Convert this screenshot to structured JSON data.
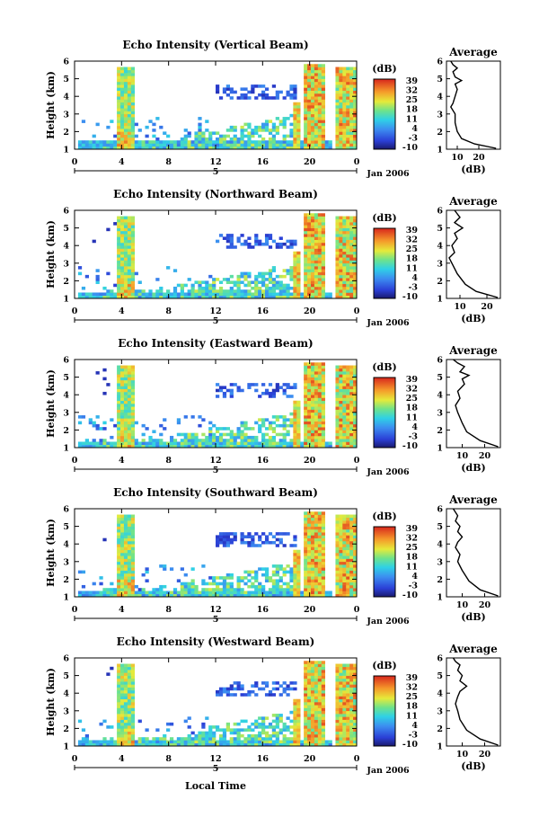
{
  "figure": {
    "bottom_label": "Local Time",
    "date_label": "Jan 2006",
    "day_label": "5"
  },
  "chart_data": [
    {
      "type": "heatmap",
      "title": "Echo Intensity (Vertical Beam)",
      "ylabel": "Height (km)",
      "xlabel": "Local Time",
      "x_ticks": [
        "0",
        "4",
        "8",
        "12",
        "16",
        "20",
        "0"
      ],
      "y_ticks": [
        "1",
        "2",
        "3",
        "4",
        "5",
        "6"
      ],
      "ylim": [
        1,
        6
      ],
      "colorbar": {
        "label": "(dB)",
        "ticks": [
          "39",
          "32",
          "25",
          "18",
          "11",
          "4",
          "-3",
          "-10"
        ],
        "range": [
          -10,
          39
        ]
      },
      "profile": {
        "title": "Average",
        "xlabel": "(dB)",
        "x_ticks": [
          "10",
          "20"
        ],
        "xlim": [
          5,
          30
        ],
        "y_ticks": [
          "1",
          "2",
          "3",
          "4",
          "5",
          "6"
        ],
        "points": [
          [
            28,
            1.05
          ],
          [
            18,
            1.3
          ],
          [
            12,
            1.6
          ],
          [
            10,
            2.0
          ],
          [
            9,
            2.5
          ],
          [
            9,
            3.0
          ],
          [
            7,
            3.4
          ],
          [
            8,
            3.6
          ],
          [
            9,
            4.0
          ],
          [
            10,
            4.4
          ],
          [
            9,
            4.7
          ],
          [
            12,
            4.9
          ],
          [
            9,
            5.1
          ],
          [
            8,
            5.4
          ],
          [
            10,
            5.6
          ],
          [
            8,
            5.8
          ],
          [
            7,
            6.0
          ]
        ]
      }
    },
    {
      "type": "heatmap",
      "title": "Echo Intensity (Northward Beam)",
      "ylabel": "Height (km)",
      "xlabel": "Local Time",
      "x_ticks": [
        "0",
        "4",
        "8",
        "12",
        "16",
        "20",
        "0"
      ],
      "y_ticks": [
        "1",
        "2",
        "3",
        "4",
        "5",
        "6"
      ],
      "ylim": [
        1,
        6
      ],
      "colorbar": {
        "label": "(dB)",
        "ticks": [
          "39",
          "32",
          "25",
          "18",
          "11",
          "4",
          "-3",
          "-10"
        ],
        "range": [
          -10,
          39
        ]
      },
      "profile": {
        "title": "Average",
        "xlabel": "(dB)",
        "x_ticks": [
          "10",
          "20"
        ],
        "xlim": [
          5,
          25
        ],
        "y_ticks": [
          "1",
          "2",
          "3",
          "4",
          "5",
          "6"
        ],
        "points": [
          [
            24,
            1.05
          ],
          [
            16,
            1.4
          ],
          [
            12,
            1.8
          ],
          [
            9,
            2.4
          ],
          [
            7,
            3.0
          ],
          [
            6,
            3.3
          ],
          [
            8,
            3.6
          ],
          [
            7,
            4.0
          ],
          [
            9,
            4.4
          ],
          [
            8,
            4.7
          ],
          [
            11,
            5.0
          ],
          [
            8,
            5.3
          ],
          [
            10,
            5.6
          ],
          [
            8,
            6.0
          ]
        ]
      }
    },
    {
      "type": "heatmap",
      "title": "Echo Intensity (Eastward Beam)",
      "ylabel": "Height (km)",
      "xlabel": "Local Time",
      "x_ticks": [
        "0",
        "4",
        "8",
        "12",
        "16",
        "20",
        "0"
      ],
      "y_ticks": [
        "1",
        "2",
        "3",
        "4",
        "5",
        "6"
      ],
      "ylim": [
        1,
        6
      ],
      "colorbar": {
        "label": "(dB)",
        "ticks": [
          "39",
          "32",
          "25",
          "18",
          "11",
          "4",
          "-3",
          "-10"
        ],
        "range": [
          -10,
          39
        ]
      },
      "profile": {
        "title": "Average",
        "xlabel": "(dB)",
        "x_ticks": [
          "10",
          "20"
        ],
        "xlim": [
          3,
          27
        ],
        "y_ticks": [
          "1",
          "2",
          "3",
          "4",
          "5",
          "6"
        ],
        "points": [
          [
            26,
            1.05
          ],
          [
            18,
            1.4
          ],
          [
            12,
            1.9
          ],
          [
            10,
            2.4
          ],
          [
            8,
            3.0
          ],
          [
            7,
            3.4
          ],
          [
            9,
            3.8
          ],
          [
            8,
            4.2
          ],
          [
            11,
            4.6
          ],
          [
            10,
            4.9
          ],
          [
            13,
            5.1
          ],
          [
            9,
            5.3
          ],
          [
            11,
            5.6
          ],
          [
            8,
            5.8
          ],
          [
            6,
            6.0
          ]
        ]
      }
    },
    {
      "type": "heatmap",
      "title": "Echo Intensity (Southward Beam)",
      "ylabel": "Height (km)",
      "xlabel": "Local Time",
      "x_ticks": [
        "0",
        "4",
        "8",
        "12",
        "16",
        "20",
        "0"
      ],
      "y_ticks": [
        "1",
        "2",
        "3",
        "4",
        "5",
        "6"
      ],
      "ylim": [
        1,
        6
      ],
      "colorbar": {
        "label": "(dB)",
        "ticks": [
          "39",
          "32",
          "25",
          "18",
          "11",
          "4",
          "-3",
          "-10"
        ],
        "range": [
          -10,
          39
        ]
      },
      "profile": {
        "title": "Average",
        "xlabel": "(dB)",
        "x_ticks": [
          "10",
          "20"
        ],
        "xlim": [
          3,
          27
        ],
        "y_ticks": [
          "1",
          "2",
          "3",
          "4",
          "5",
          "6"
        ],
        "points": [
          [
            26,
            1.05
          ],
          [
            18,
            1.4
          ],
          [
            13,
            1.9
          ],
          [
            10,
            2.5
          ],
          [
            8,
            3.0
          ],
          [
            9,
            3.4
          ],
          [
            7,
            3.8
          ],
          [
            8,
            4.1
          ],
          [
            10,
            4.4
          ],
          [
            8,
            4.7
          ],
          [
            9,
            5.0
          ],
          [
            7,
            5.3
          ],
          [
            8,
            5.6
          ],
          [
            6,
            6.0
          ]
        ]
      }
    },
    {
      "type": "heatmap",
      "title": "Echo Intensity (Westward Beam)",
      "ylabel": "Height (km)",
      "xlabel": "Local Time",
      "x_ticks": [
        "0",
        "4",
        "8",
        "12",
        "16",
        "20",
        "0"
      ],
      "y_ticks": [
        "1",
        "2",
        "3",
        "4",
        "5",
        "6"
      ],
      "ylim": [
        1,
        6
      ],
      "colorbar": {
        "label": "(dB)",
        "ticks": [
          "39",
          "32",
          "25",
          "18",
          "11",
          "4",
          "-3",
          "-10"
        ],
        "range": [
          -10,
          39
        ]
      },
      "profile": {
        "title": "Average",
        "xlabel": "(dB)",
        "x_ticks": [
          "10",
          "20"
        ],
        "xlim": [
          3,
          27
        ],
        "y_ticks": [
          "1",
          "2",
          "3",
          "4",
          "5",
          "6"
        ],
        "points": [
          [
            26,
            1.05
          ],
          [
            18,
            1.4
          ],
          [
            12,
            1.9
          ],
          [
            9,
            2.5
          ],
          [
            8,
            3.0
          ],
          [
            7,
            3.4
          ],
          [
            8,
            3.8
          ],
          [
            9,
            4.1
          ],
          [
            12,
            4.4
          ],
          [
            9,
            4.7
          ],
          [
            10,
            5.0
          ],
          [
            8,
            5.3
          ],
          [
            9,
            5.6
          ],
          [
            7,
            5.8
          ],
          [
            6,
            6.0
          ]
        ]
      }
    }
  ]
}
